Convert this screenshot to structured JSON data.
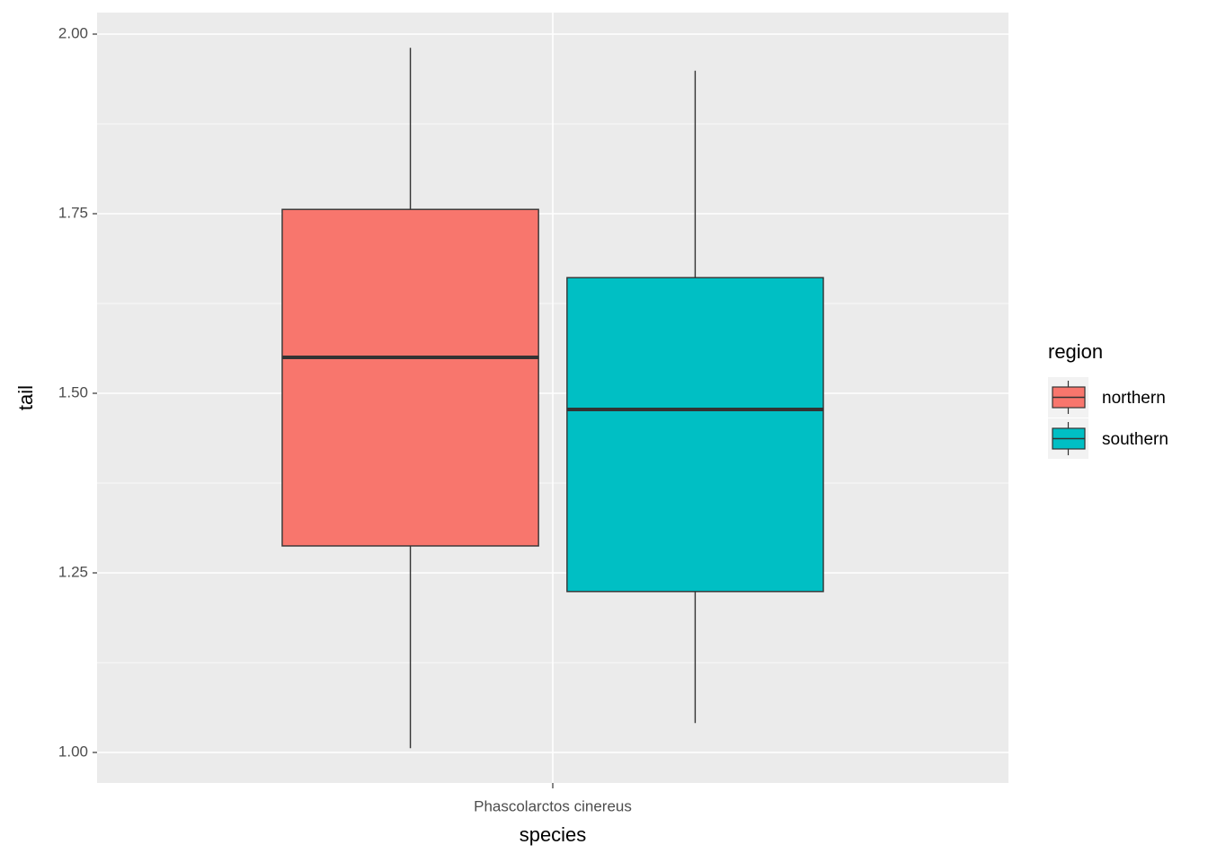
{
  "chart_data": {
    "type": "box",
    "x_label": "species",
    "y_label": "tail",
    "legend_title": "region",
    "categories": [
      "Phascolarctos cinereus"
    ],
    "series": [
      {
        "name": "northern",
        "color": "#f8766d",
        "min": [
          1.006
        ],
        "q1": [
          1.2875
        ],
        "median": [
          1.55
        ],
        "q3": [
          1.756
        ],
        "max": [
          1.981
        ]
      },
      {
        "name": "southern",
        "color": "#00bfc4",
        "min": [
          1.041
        ],
        "q1": [
          1.224
        ],
        "median": [
          1.4775
        ],
        "q3": [
          1.661
        ],
        "max": [
          1.949
        ]
      }
    ],
    "ylim": [
      0.9575,
      2.03
    ],
    "yticks": [
      {
        "value": 1,
        "label": "1.00"
      },
      {
        "value": 1.25,
        "label": "1.25"
      },
      {
        "value": 1.5,
        "label": "1.50"
      },
      {
        "value": 1.75,
        "label": "1.75"
      },
      {
        "value": 2,
        "label": "2.00"
      }
    ],
    "grid": true,
    "legend": "right"
  }
}
